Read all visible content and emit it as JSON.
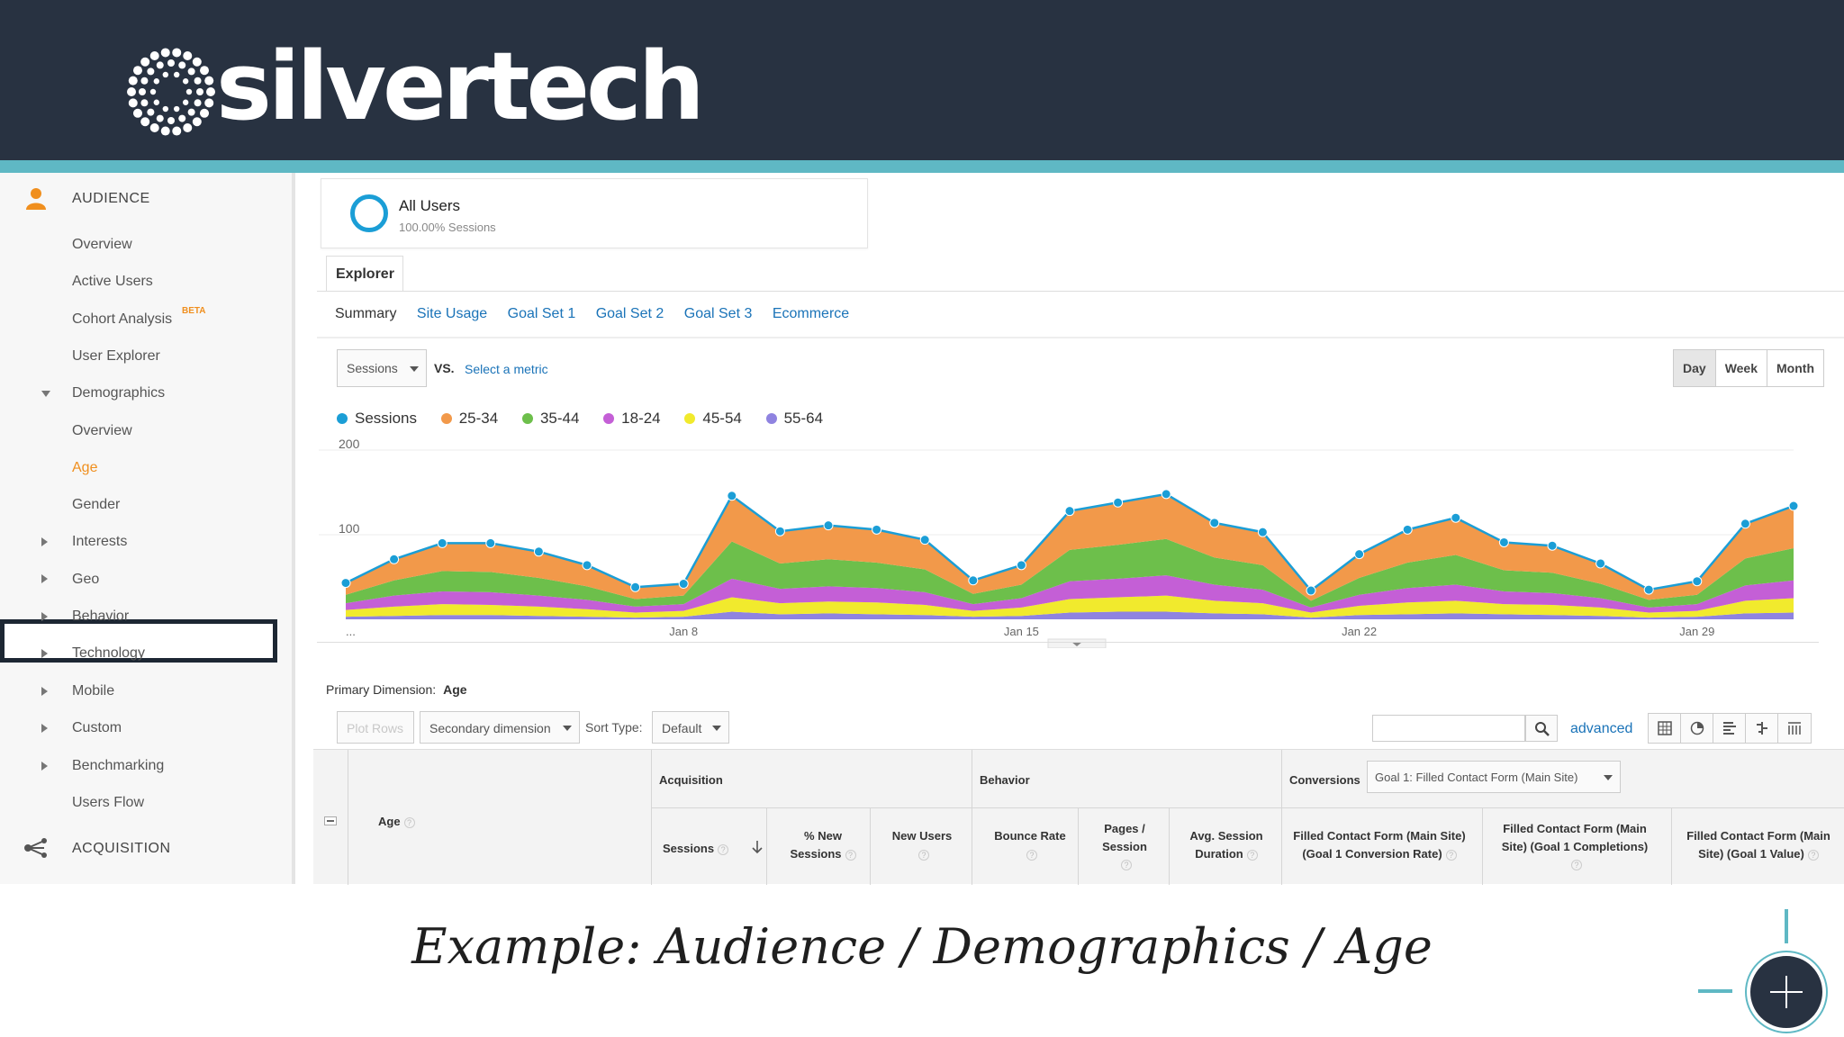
{
  "brand": {
    "logo_text": "silvertech"
  },
  "colors": {
    "header_bg": "#283241",
    "accent": "#5fb8c4",
    "active_orange": "#f08f1e",
    "link_blue": "#1a73b8"
  },
  "sidebar": {
    "audience": {
      "icon": "person-icon",
      "label": "AUDIENCE"
    },
    "items": {
      "overview": "Overview",
      "active_users": "Active Users",
      "cohort_analysis": "Cohort Analysis",
      "cohort_badge": "BETA",
      "user_explorer": "User Explorer",
      "demographics": "Demographics",
      "demo_overview": "Overview",
      "age": "Age",
      "gender": "Gender",
      "interests": "Interests",
      "geo": "Geo",
      "behavior": "Behavior",
      "technology": "Technology",
      "mobile": "Mobile",
      "custom": "Custom",
      "benchmarking": "Benchmarking",
      "users_flow": "Users Flow"
    },
    "acquisition": {
      "icon": "acquisition-icon",
      "label": "ACQUISITION"
    }
  },
  "segment": {
    "title": "All Users",
    "subtitle": "100.00% Sessions"
  },
  "explorer_tab": "Explorer",
  "subtabs": [
    "Summary",
    "Site Usage",
    "Goal Set 1",
    "Goal Set 2",
    "Goal Set 3",
    "Ecommerce"
  ],
  "metric_controls": {
    "metric": "Sessions",
    "vs": "VS.",
    "select_metric": "Select a metric"
  },
  "period_buttons": [
    "Day",
    "Week",
    "Month"
  ],
  "chart_data": {
    "type": "area",
    "stacked": true,
    "series_colors": {
      "Sessions": "#1b9ed6",
      "25-34": "#f2994a",
      "35-44": "#6dbf4b",
      "18-24": "#c45fd6",
      "45-54": "#f1ea2d",
      "55-64": "#8f83e0"
    },
    "legend": [
      "Sessions",
      "25-34",
      "35-44",
      "18-24",
      "45-54",
      "55-64"
    ],
    "x_ticks": [
      "...",
      "Jan 8",
      "Jan 15",
      "Jan 22",
      "Jan 29"
    ],
    "y_ticks": [
      "200",
      "100"
    ],
    "ylim": [
      0,
      200
    ],
    "x": [
      1,
      2,
      3,
      4,
      5,
      6,
      7,
      8,
      9,
      10,
      11,
      12,
      13,
      14,
      15,
      16,
      17,
      18,
      19,
      20,
      21,
      22,
      23,
      24,
      25,
      26,
      27,
      28,
      29,
      30,
      31
    ],
    "sessions": [
      43,
      71,
      90,
      90,
      80,
      64,
      38,
      42,
      146,
      104,
      111,
      106,
      94,
      46,
      64,
      128,
      138,
      148,
      114,
      103,
      34,
      77,
      106,
      120,
      91,
      87,
      66,
      35,
      45,
      113,
      134
    ],
    "series": [
      {
        "name": "55-64",
        "values": [
          3,
          4,
          5,
          5,
          4,
          3,
          2,
          3,
          9,
          6,
          7,
          6,
          5,
          3,
          4,
          8,
          9,
          9,
          7,
          6,
          2,
          5,
          6,
          7,
          6,
          5,
          4,
          2,
          3,
          7,
          8
        ]
      },
      {
        "name": "45-54",
        "values": [
          8,
          11,
          13,
          12,
          11,
          9,
          6,
          7,
          17,
          13,
          14,
          14,
          12,
          7,
          10,
          16,
          17,
          19,
          15,
          13,
          6,
          11,
          14,
          15,
          12,
          12,
          10,
          6,
          7,
          15,
          17
        ]
      },
      {
        "name": "18-24",
        "values": [
          8,
          13,
          15,
          15,
          13,
          11,
          7,
          8,
          22,
          17,
          18,
          17,
          15,
          8,
          11,
          21,
          22,
          24,
          19,
          16,
          6,
          13,
          17,
          19,
          15,
          14,
          11,
          6,
          8,
          18,
          21
        ]
      },
      {
        "name": "35-44",
        "values": [
          10,
          18,
          24,
          24,
          21,
          16,
          9,
          10,
          44,
          30,
          32,
          30,
          27,
          12,
          16,
          37,
          40,
          43,
          32,
          29,
          8,
          20,
          30,
          35,
          25,
          24,
          17,
          9,
          11,
          32,
          38
        ]
      },
      {
        "name": "25-34",
        "values": [
          14,
          25,
          33,
          34,
          31,
          25,
          14,
          14,
          54,
          38,
          40,
          39,
          35,
          16,
          23,
          46,
          50,
          53,
          41,
          39,
          12,
          28,
          39,
          44,
          33,
          32,
          24,
          12,
          16,
          41,
          50
        ]
      }
    ]
  },
  "primary_dimension": {
    "label": "Primary Dimension:",
    "value": "Age"
  },
  "table_controls": {
    "plot_rows": "Plot Rows",
    "secondary_dimension": "Secondary dimension",
    "sort_type_label": "Sort Type:",
    "sort_type_value": "Default",
    "advanced": "advanced"
  },
  "table_header": {
    "dimension": "Age",
    "groups": {
      "acquisition": "Acquisition",
      "behavior": "Behavior",
      "conversions": "Conversions"
    },
    "goal_select": "Goal 1: Filled Contact Form (Main Site)",
    "columns": {
      "sessions": "Sessions",
      "pct_new_1": "% New",
      "pct_new_2": "Sessions",
      "new_users": "New Users",
      "bounce_rate": "Bounce Rate",
      "pages_1": "Pages /",
      "pages_2": "Session",
      "avg_1": "Avg. Session",
      "avg_2": "Duration",
      "conv_rate_1": "Filled Contact Form (Main Site)",
      "conv_rate_2": "(Goal 1 Conversion Rate)",
      "completions_1": "Filled Contact Form (Main",
      "completions_2": "Site) (Goal 1 Completions)",
      "value_1": "Filled Contact Form (Main",
      "value_2": "Site) (Goal 1 Value)"
    }
  },
  "caption": "Example: Audience / Demographics / Age"
}
